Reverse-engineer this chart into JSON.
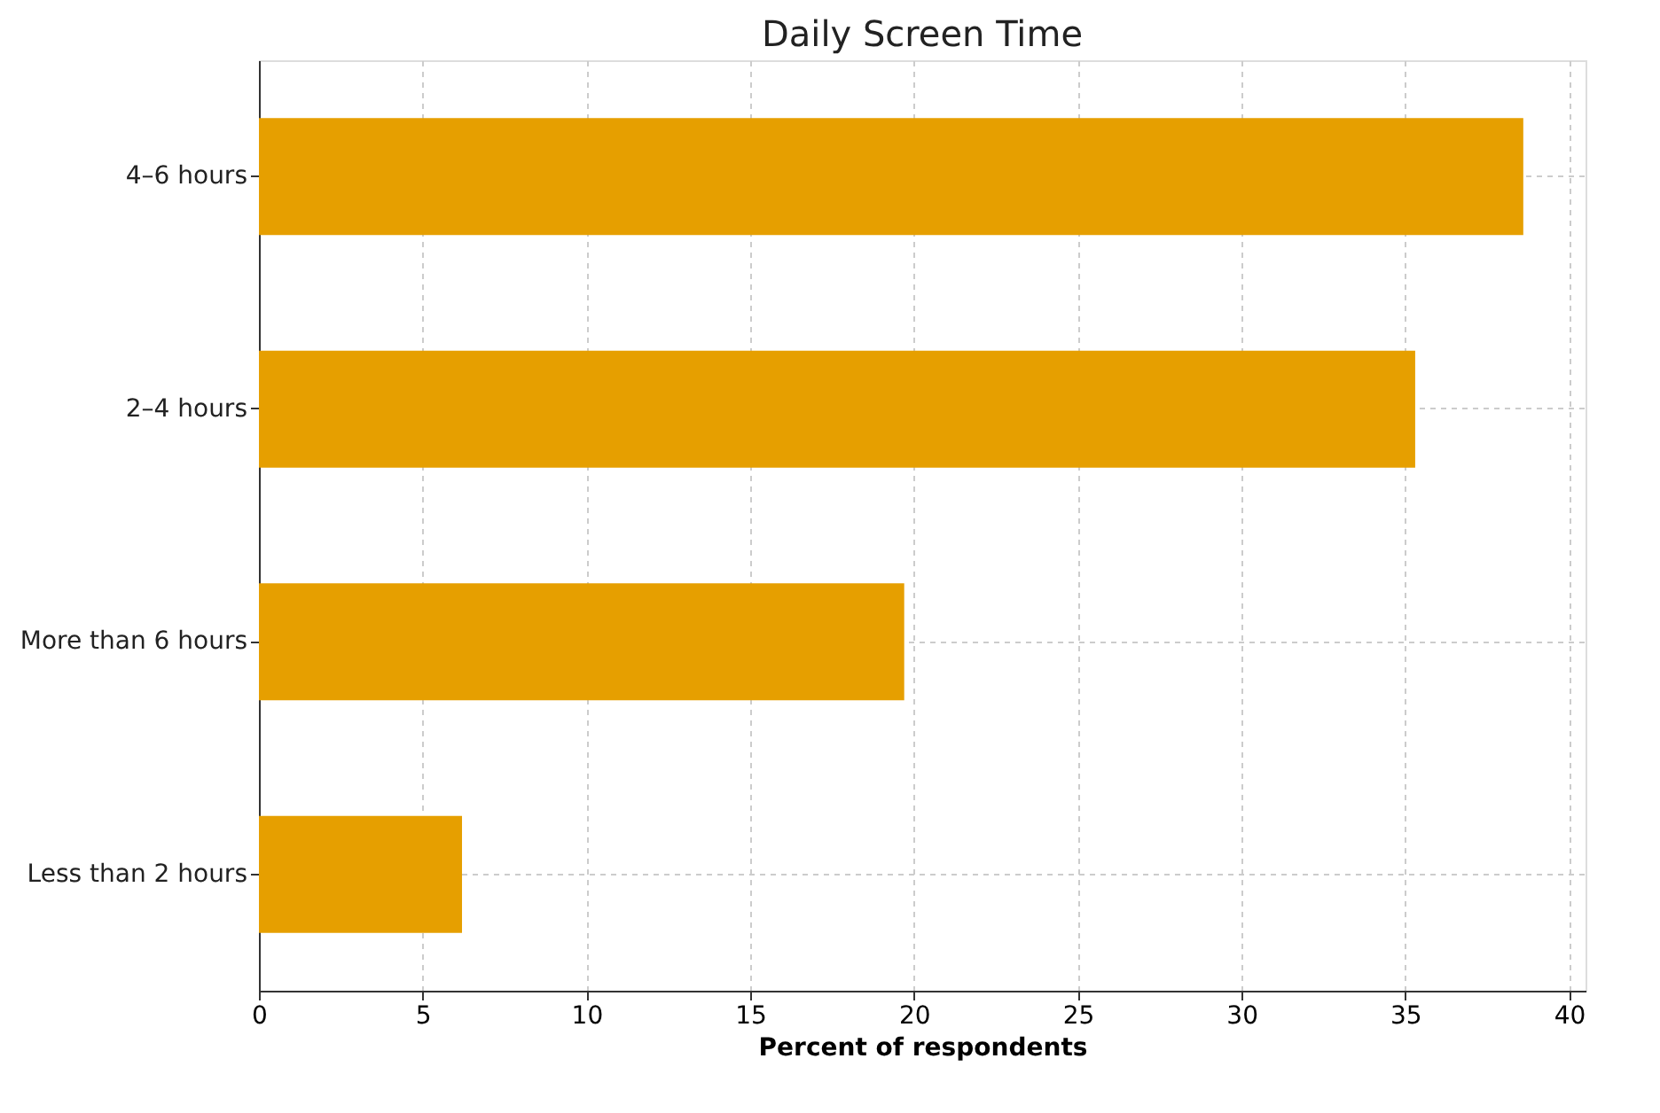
{
  "chart_data": {
    "type": "bar",
    "orientation": "horizontal",
    "title": "Daily Screen Time",
    "xlabel": "Percent of respondents",
    "categories": [
      "4–6 hours",
      "2–4 hours",
      "More than 6 hours",
      "Less than 2 hours"
    ],
    "values": [
      38.6,
      35.3,
      19.7,
      6.2
    ],
    "color": "#e69f00",
    "xlim": [
      0,
      40.5
    ],
    "xticks": [
      0,
      5,
      10,
      15,
      20,
      25,
      30,
      35,
      40
    ],
    "grid": true
  }
}
